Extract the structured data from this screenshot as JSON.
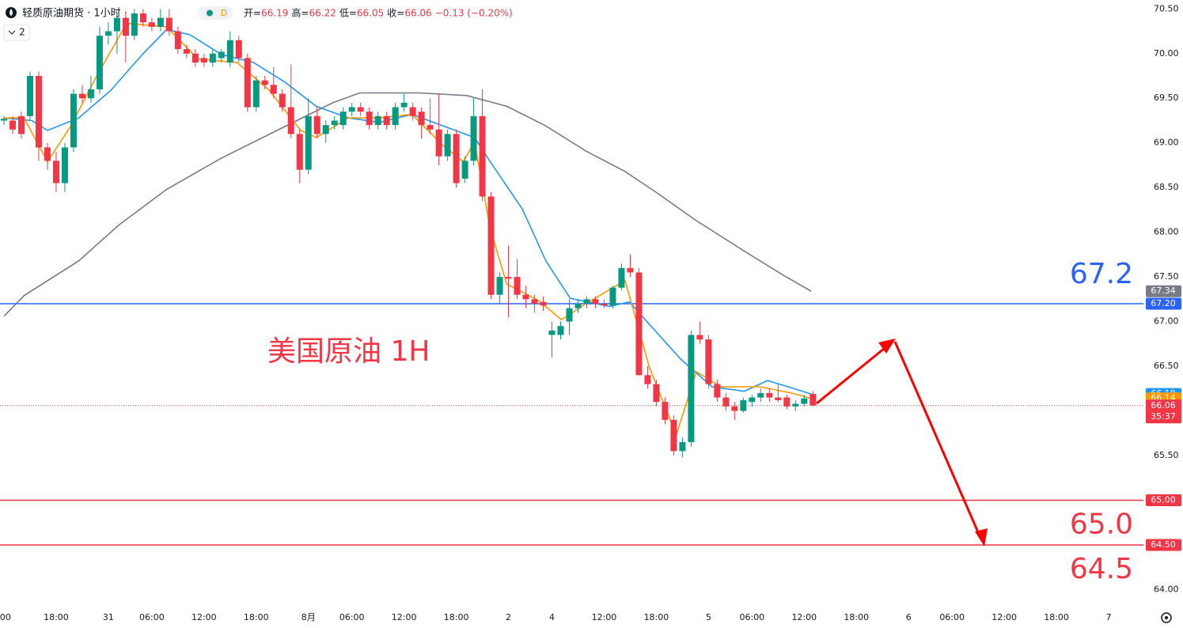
{
  "chart_data": {
    "type": "candlestick",
    "title": "轻质原油期货 · 1小时 ·",
    "badge": "D",
    "interval": "2",
    "legend_ohlc": [
      {
        "label": "开=",
        "value": 66.19
      },
      {
        "label": "高=",
        "value": 66.22
      },
      {
        "label": "低=",
        "value": 66.05
      },
      {
        "label": "收=",
        "value": 66.06
      }
    ],
    "change": "−0.13 (−0.20%)",
    "annotation": "美国原油 1H",
    "up_color": "#089981",
    "down_color": "#f23645",
    "xlim": [
      0,
      131
    ],
    "ylim": [
      63.8,
      70.6
    ],
    "yticks": [
      {
        "value": 64,
        "label": "64.00"
      },
      {
        "value": 64.5,
        "label": "64.50"
      },
      {
        "value": 65,
        "label": "65.00"
      },
      {
        "value": 65.5,
        "label": "65.50"
      },
      {
        "value": 66,
        "label": "66.00"
      },
      {
        "value": 66.5,
        "label": "66.50"
      },
      {
        "value": 67,
        "label": "67.00"
      },
      {
        "value": 67.5,
        "label": "67.50"
      },
      {
        "value": 68,
        "label": "68.00"
      },
      {
        "value": 68.5,
        "label": "68.50"
      },
      {
        "value": 69,
        "label": "69.00"
      },
      {
        "value": 69.5,
        "label": "69.50"
      },
      {
        "value": 70,
        "label": "70.00"
      },
      {
        "value": 70.5,
        "label": "70.50"
      }
    ],
    "xticks": [
      {
        "value": 0,
        "label": ":00"
      },
      {
        "value": 6,
        "label": "18:00"
      },
      {
        "value": 12,
        "label": "31"
      },
      {
        "value": 17,
        "label": "06:00"
      },
      {
        "value": 23,
        "label": "12:00"
      },
      {
        "value": 29,
        "label": "18:00"
      },
      {
        "value": 35,
        "label": "8月"
      },
      {
        "value": 40,
        "label": "06:00"
      },
      {
        "value": 46,
        "label": "12:00"
      },
      {
        "value": 52,
        "label": "18:00"
      },
      {
        "value": 58,
        "label": "2"
      },
      {
        "value": 63,
        "label": "4"
      },
      {
        "value": 69,
        "label": "12:00"
      },
      {
        "value": 75,
        "label": "18:00"
      },
      {
        "value": 81,
        "label": "5"
      },
      {
        "value": 86,
        "label": "06:00"
      },
      {
        "value": 92,
        "label": "12:00"
      },
      {
        "value": 98,
        "label": "18:00"
      },
      {
        "value": 104,
        "label": "6"
      },
      {
        "value": 109,
        "label": "06:00"
      },
      {
        "value": 115,
        "label": "12:00"
      },
      {
        "value": 121,
        "label": "18:00"
      },
      {
        "value": 127,
        "label": "7"
      }
    ],
    "candles": {
      "open": [
        69.25,
        69.25,
        69.3,
        69.3,
        69.75,
        68.95,
        68.8,
        68.55,
        68.95,
        69.55,
        69.5,
        69.6,
        70.2,
        70.25,
        70.4,
        70.2,
        70.45,
        70.35,
        70.3,
        70.4,
        70.25,
        70.05,
        70.0,
        69.95,
        69.9,
        69.95,
        69.9,
        70.15,
        69.95,
        69.4,
        69.7,
        69.65,
        69.55,
        69.4,
        69.1,
        68.7,
        69.3,
        69.1,
        69.2,
        69.2,
        69.35,
        69.4,
        69.35,
        69.2,
        69.3,
        69.2,
        69.4,
        69.4,
        69.35,
        69.2,
        69.15,
        68.85,
        69.1,
        68.6,
        68.8,
        69.3,
        68.4,
        67.3,
        67.5,
        67.5,
        67.3,
        67.25,
        67.22,
        66.85,
        66.85,
        67.0,
        67.15,
        67.2,
        67.25,
        67.2,
        67.18,
        67.38,
        67.6,
        67.55,
        66.4,
        66.3,
        66.1,
        65.9,
        65.55,
        65.65,
        66.85,
        66.8,
        66.3,
        66.15,
        66.05,
        66.0,
        66.1,
        66.15,
        66.2,
        66.15,
        66.15,
        66.05,
        66.08,
        66.19
      ],
      "high": [
        69.3,
        69.3,
        69.35,
        69.8,
        69.8,
        69.0,
        68.9,
        69.0,
        69.6,
        69.65,
        69.75,
        70.3,
        70.35,
        70.45,
        70.45,
        70.5,
        70.5,
        70.4,
        70.5,
        70.5,
        70.3,
        70.1,
        70.05,
        70.0,
        70.05,
        70.05,
        70.25,
        70.2,
        70.0,
        69.75,
        69.75,
        69.85,
        69.6,
        69.88,
        69.15,
        69.5,
        69.4,
        69.25,
        69.3,
        69.4,
        69.45,
        69.45,
        69.4,
        69.35,
        69.35,
        69.45,
        69.55,
        69.45,
        69.4,
        69.5,
        69.55,
        69.15,
        69.15,
        68.85,
        69.5,
        69.6,
        68.45,
        67.55,
        67.85,
        67.7,
        67.4,
        67.3,
        67.28,
        67.0,
        67.0,
        67.25,
        67.25,
        67.28,
        67.28,
        67.25,
        67.4,
        67.65,
        67.75,
        67.6,
        66.5,
        66.35,
        66.15,
        65.95,
        65.7,
        66.9,
        67.0,
        66.85,
        66.35,
        66.2,
        66.1,
        66.15,
        66.18,
        66.25,
        66.25,
        66.3,
        66.18,
        66.12,
        66.18,
        66.22
      ],
      "low": [
        69.2,
        69.1,
        69.05,
        69.25,
        68.8,
        68.7,
        68.45,
        68.45,
        68.9,
        69.45,
        69.45,
        69.55,
        70.1,
        70.0,
        69.9,
        70.15,
        70.3,
        70.25,
        70.25,
        70.2,
        70.0,
        69.95,
        69.85,
        69.85,
        69.85,
        69.9,
        69.85,
        69.9,
        69.35,
        69.35,
        69.6,
        69.5,
        69.35,
        69.05,
        68.55,
        68.65,
        69.05,
        69.0,
        69.15,
        69.15,
        69.3,
        69.3,
        69.15,
        69.15,
        69.15,
        69.15,
        69.35,
        69.25,
        69.05,
        69.1,
        68.75,
        68.8,
        68.5,
        68.55,
        68.75,
        68.35,
        67.25,
        67.2,
        67.05,
        67.25,
        67.15,
        67.1,
        67.12,
        66.6,
        66.8,
        66.85,
        67.1,
        67.15,
        67.15,
        67.15,
        67.15,
        67.35,
        67.5,
        66.4,
        66.25,
        66.05,
        65.85,
        65.5,
        65.48,
        65.6,
        66.75,
        66.25,
        66.1,
        66.0,
        65.9,
        65.98,
        66.05,
        66.1,
        66.1,
        66.1,
        66.02,
        66.0,
        66.05,
        66.05
      ],
      "close": [
        69.27,
        69.15,
        69.1,
        69.75,
        68.95,
        68.8,
        68.55,
        68.95,
        69.55,
        69.5,
        69.6,
        70.2,
        70.25,
        70.4,
        70.2,
        70.45,
        70.35,
        70.3,
        70.4,
        70.25,
        70.05,
        70.0,
        69.9,
        69.9,
        70.0,
        70.02,
        70.15,
        69.95,
        69.4,
        69.7,
        69.65,
        69.55,
        69.4,
        69.1,
        68.7,
        69.3,
        69.1,
        69.2,
        69.25,
        69.35,
        69.4,
        69.35,
        69.2,
        69.3,
        69.2,
        69.4,
        69.45,
        69.3,
        69.2,
        69.15,
        68.85,
        69.1,
        68.55,
        68.8,
        69.3,
        68.4,
        67.3,
        67.5,
        67.48,
        67.3,
        67.25,
        67.2,
        67.18,
        66.9,
        66.95,
        67.15,
        67.2,
        67.25,
        67.2,
        67.18,
        67.38,
        67.6,
        67.55,
        66.4,
        66.3,
        66.1,
        65.9,
        65.55,
        65.65,
        66.85,
        66.8,
        66.3,
        66.15,
        66.05,
        66.0,
        66.12,
        66.15,
        66.2,
        66.15,
        66.12,
        66.05,
        66.08,
        66.14,
        66.06
      ]
    },
    "lines": [
      {
        "color": "#787b86",
        "x": [
          0,
          2.3,
          8.6,
          13.2,
          18.7,
          25,
          31.4,
          37.8,
          40.9,
          47.8,
          53.2,
          57.8,
          62.3,
          66.9,
          71.4,
          75.1,
          79.6,
          85.1,
          89.6,
          92.8
        ],
        "values": [
          67.06,
          67.29,
          67.68,
          68.08,
          68.48,
          68.83,
          69.14,
          69.45,
          69.56,
          69.56,
          69.53,
          69.41,
          69.19,
          68.91,
          68.68,
          68.44,
          68.13,
          67.79,
          67.52,
          67.34
        ]
      },
      {
        "color": "#2196f3",
        "x": [
          0,
          3.2,
          5,
          8.6,
          12.3,
          15.9,
          18.7,
          21.4,
          25,
          28.7,
          32.3,
          35.9,
          39.6,
          43.2,
          46.9,
          50.5,
          54.1,
          55.9,
          59.6,
          62.3,
          65.1,
          69.6,
          71.9,
          74.2,
          77.8,
          81.4,
          85.1,
          87.8,
          92.8
        ],
        "values": [
          69.28,
          69.25,
          69.14,
          69.28,
          69.59,
          69.99,
          70.27,
          70.21,
          69.99,
          69.9,
          69.68,
          69.41,
          69.28,
          69.23,
          69.32,
          69.19,
          69.06,
          68.79,
          68.26,
          67.68,
          67.26,
          67.17,
          67.22,
          66.97,
          66.58,
          66.27,
          66.22,
          66.34,
          66.19
        ]
      },
      {
        "color": "#ff9800",
        "x": [
          0,
          2.3,
          5,
          7.7,
          10.5,
          14.1,
          18.7,
          22.3,
          26.8,
          30.5,
          34.1,
          35.9,
          39.6,
          43.2,
          46.9,
          50.5,
          52.8,
          54.1,
          55.9,
          57.8,
          61.4,
          64.1,
          66.9,
          71.4,
          74.2,
          77.3,
          79.6,
          82.4,
          86.9,
          90.5,
          92.8
        ],
        "values": [
          69.28,
          69.28,
          68.79,
          69.19,
          69.72,
          70.34,
          70.3,
          69.94,
          69.9,
          69.59,
          69.14,
          69.06,
          69.28,
          69.28,
          69.32,
          68.97,
          68.79,
          69.01,
          68.04,
          67.42,
          67.24,
          67.02,
          67.2,
          67.46,
          66.49,
          65.73,
          66.44,
          66.27,
          66.27,
          66.2,
          66.14
        ]
      }
    ],
    "hlines": [
      {
        "value": 67.2,
        "label": "67.2",
        "color": "#2962ff"
      },
      {
        "value": 65,
        "label": "65.0",
        "color": "#f23645"
      },
      {
        "value": 64.5,
        "label": "64.5",
        "color": "#f23645"
      }
    ],
    "last_price": {
      "value": 66.06,
      "color": "#f23645",
      "countdown": "35:37"
    },
    "price_labels": [
      {
        "value": 67.34,
        "label": "67.34",
        "color": "#787b86"
      },
      {
        "value": 67.2,
        "label": "67.20",
        "color": "#2962ff"
      },
      {
        "value": 66.19,
        "label": "66.19",
        "color": "#2196f3"
      },
      {
        "value": 66.14,
        "label": "66.14",
        "color": "#ff9800"
      },
      {
        "value": 66.06,
        "label": "66.06",
        "color": "#f23645"
      },
      {
        "value": 65,
        "label": "65.00",
        "color": "#f23645"
      },
      {
        "value": 64.5,
        "label": "64.50",
        "color": "#f23645"
      }
    ]
  }
}
